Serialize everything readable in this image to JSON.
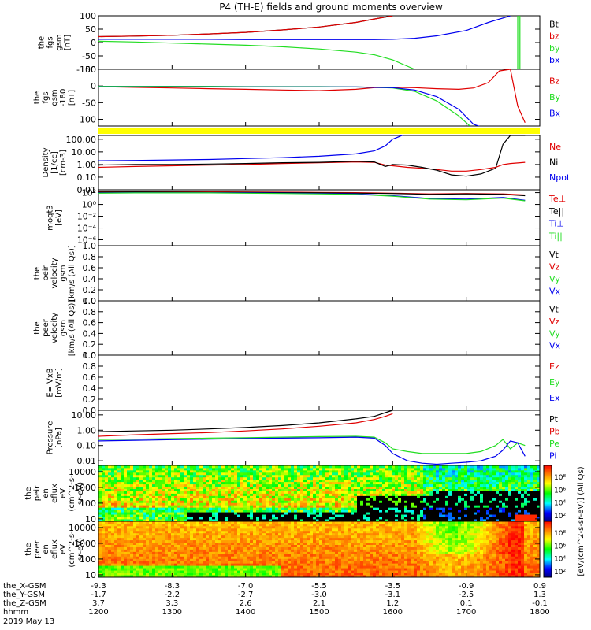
{
  "title": "P4 (TH-E) fields and ground moments overview",
  "colors": {
    "black": "#000000",
    "red": "#e00000",
    "green": "#22dd22",
    "blue": "#0000ee",
    "yellow": "#ffff00",
    "panel_bg": "#ffffff"
  },
  "chart_data": [
    {
      "type": "line",
      "ylabel_lines": [
        "the",
        "fgs",
        "gsm",
        "[nT]"
      ],
      "ylim": [
        -100,
        100
      ],
      "yticks": [
        "100",
        "50",
        "0",
        "-50",
        "-100"
      ],
      "legend": [
        "Bt",
        "bz",
        "by",
        "bx"
      ],
      "legend_colors": [
        "#000000",
        "#e00000",
        "#22dd22",
        "#0000ee"
      ],
      "x_hours": [
        12.0,
        12.5,
        13.0,
        13.5,
        14.0,
        14.5,
        15.0,
        15.5,
        15.75,
        16.0,
        16.3,
        16.6,
        17.0,
        17.3,
        17.6,
        17.8
      ],
      "series": [
        {
          "color": "#000000",
          "values": [
            22,
            24,
            27,
            32,
            38,
            47,
            58,
            75,
            88,
            100,
            null,
            null,
            null,
            null,
            null,
            null
          ]
        },
        {
          "color": "#e00000",
          "values": [
            22,
            24,
            27,
            32,
            38,
            47,
            58,
            75,
            88,
            100,
            null,
            null,
            null,
            null,
            null,
            null
          ]
        },
        {
          "color": "#22dd22",
          "values": [
            5,
            2,
            -2,
            -6,
            -10,
            -16,
            -24,
            -36,
            -46,
            -65,
            -100,
            null,
            null,
            null,
            null,
            null
          ]
        },
        {
          "color": "#0000ee",
          "values": [
            12,
            12,
            12,
            12,
            11,
            11,
            11,
            11,
            11,
            12,
            16,
            25,
            45,
            75,
            100,
            null
          ]
        }
      ],
      "spikes_hours": [
        17.7,
        17.73
      ]
    },
    {
      "type": "line",
      "ylabel_lines": [
        "the",
        "fgs",
        "gsm",
        "-180",
        "[nT]"
      ],
      "ylim": [
        -120,
        50
      ],
      "yticks": [
        "50",
        "0",
        "-50",
        "-100"
      ],
      "legend": [
        "Bz",
        "By",
        "Bx"
      ],
      "legend_colors": [
        "#e00000",
        "#22dd22",
        "#0000ee"
      ],
      "x_hours": [
        12.0,
        12.5,
        13.0,
        13.5,
        14.0,
        14.5,
        15.0,
        15.5,
        15.75,
        16.0,
        16.3,
        16.6,
        16.9,
        17.1,
        17.3,
        17.45,
        17.6,
        17.7,
        17.8
      ],
      "series": [
        {
          "color": "#e00000",
          "values": [
            -2,
            -4,
            -6,
            -8,
            -10,
            -12,
            -14,
            -10,
            -5,
            -4,
            -5,
            -8,
            -10,
            -6,
            10,
            45,
            50,
            -60,
            -110
          ]
        },
        {
          "color": "#22dd22",
          "values": [
            -1,
            -1,
            -1,
            -1,
            -2,
            -2,
            -2,
            -3,
            -4,
            -6,
            -16,
            -45,
            -90,
            -130,
            null,
            null,
            null,
            null,
            null
          ]
        },
        {
          "color": "#0000ee",
          "values": [
            -3,
            -3,
            -3,
            -3,
            -3,
            -3,
            -3,
            -3,
            -4,
            -5,
            -12,
            -32,
            -70,
            -115,
            -130,
            null,
            null,
            null,
            -100
          ]
        }
      ]
    },
    {
      "type": "line",
      "log": true,
      "ylabel_lines": [
        "Density",
        "[1/cc]",
        "[cm-3]"
      ],
      "ylim": [
        0.01,
        200
      ],
      "yticks": [
        "100.00",
        "10.00",
        "1.00",
        "0.10",
        "0.01"
      ],
      "legend": [
        "Ne",
        "Ni",
        "Npot"
      ],
      "legend_colors": [
        "#e00000",
        "#000000",
        "#0000ee"
      ],
      "x_hours": [
        12.0,
        12.5,
        13.0,
        13.5,
        14.0,
        14.5,
        15.0,
        15.5,
        15.75,
        15.9,
        16.0,
        16.2,
        16.4,
        16.6,
        16.8,
        17.0,
        17.2,
        17.4,
        17.5,
        17.6,
        17.8
      ],
      "series": [
        {
          "color": "#0000ee",
          "values": [
            2.0,
            2.1,
            2.3,
            2.5,
            3.0,
            3.5,
            4.5,
            7,
            12,
            30,
            100,
            300,
            null,
            null,
            null,
            null,
            null,
            null,
            null,
            null,
            null
          ]
        },
        {
          "color": "#e00000",
          "values": [
            0.6,
            0.7,
            0.8,
            0.9,
            1.0,
            1.2,
            1.4,
            1.6,
            1.5,
            0.9,
            0.8,
            0.6,
            0.5,
            0.4,
            0.3,
            0.3,
            0.4,
            0.6,
            1.0,
            1.2,
            1.5
          ]
        },
        {
          "color": "#000000",
          "values": [
            0.9,
            1.0,
            1.0,
            1.1,
            1.2,
            1.4,
            1.5,
            1.8,
            1.6,
            0.7,
            1.0,
            0.9,
            0.6,
            0.35,
            0.15,
            0.12,
            0.18,
            0.5,
            40,
            200,
            200
          ]
        }
      ]
    },
    {
      "type": "line",
      "log": true,
      "ylabel_lines": [
        "moqt3",
        "[eV]"
      ],
      "ylim": [
        1e-07,
        300
      ],
      "yticks": [
        "10²",
        "10⁰",
        "10⁻²",
        "10⁻⁴",
        "10⁻⁶"
      ],
      "legend": [
        "Te⊥",
        "Te||",
        "Ti⊥",
        "Ti||"
      ],
      "legend_colors": [
        "#e00000",
        "#000000",
        "#0000ee",
        "#22dd22"
      ],
      "x_hours": [
        12.0,
        12.5,
        13.0,
        13.5,
        14.0,
        14.5,
        15.0,
        15.5,
        16.0,
        16.5,
        17.0,
        17.5,
        17.8
      ],
      "series": [
        {
          "color": "#e00000",
          "values": [
            150,
            150,
            140,
            140,
            130,
            120,
            110,
            100,
            80,
            60,
            70,
            60,
            40
          ]
        },
        {
          "color": "#000000",
          "values": [
            120,
            130,
            120,
            110,
            110,
            100,
            90,
            80,
            70,
            50,
            60,
            50,
            30
          ]
        },
        {
          "color": "#0000ee",
          "values": [
            90,
            100,
            100,
            100,
            90,
            80,
            70,
            60,
            30,
            10,
            8,
            15,
            5
          ]
        },
        {
          "color": "#22dd22",
          "values": [
            80,
            90,
            90,
            90,
            80,
            70,
            60,
            50,
            25,
            8,
            6,
            12,
            4
          ]
        }
      ]
    },
    {
      "type": "line",
      "ylabel_lines": [
        "the",
        "peir",
        "velocity",
        "gsm",
        "[km/s (All Qs)]"
      ],
      "ylim": [
        0,
        1
      ],
      "yticks": [
        "1.0",
        "0.8",
        "0.6",
        "0.4",
        "0.2",
        "0.0"
      ],
      "legend": [
        "Vt",
        "Vz",
        "Vy",
        "Vx"
      ],
      "legend_colors": [
        "#000000",
        "#e00000",
        "#22dd22",
        "#0000ee"
      ],
      "series": []
    },
    {
      "type": "line",
      "ylabel_lines": [
        "the",
        "peer",
        "velocity",
        "gsm",
        "[km/s (All Qs)]"
      ],
      "ylim": [
        0,
        1
      ],
      "yticks": [
        "1.0",
        "0.8",
        "0.6",
        "0.4",
        "0.2",
        "0.0"
      ],
      "legend": [
        "Vt",
        "Vz",
        "Vy",
        "Vx"
      ],
      "legend_colors": [
        "#000000",
        "#e00000",
        "#22dd22",
        "#0000ee"
      ],
      "series": []
    },
    {
      "type": "line",
      "ylabel_lines": [
        "E=-VxB",
        "[mV/m]"
      ],
      "ylim": [
        0,
        1
      ],
      "yticks": [
        "1.0",
        "0.8",
        "0.6",
        "0.4",
        "0.2",
        "0.0"
      ],
      "legend": [
        "Ez",
        "Ey",
        "Ex"
      ],
      "legend_colors": [
        "#e00000",
        "#22dd22",
        "#0000ee"
      ],
      "series": []
    },
    {
      "type": "line",
      "log": true,
      "ylabel_lines": [
        "Pressure",
        "[nPa]"
      ],
      "ylim": [
        0.005,
        20
      ],
      "yticks": [
        "10.00",
        "1.00",
        "0.10",
        "0.01"
      ],
      "legend": [
        "Pt",
        "Pb",
        "Pe",
        "Pi"
      ],
      "legend_colors": [
        "#000000",
        "#e00000",
        "#22dd22",
        "#0000ee"
      ],
      "x_hours": [
        12.0,
        12.5,
        13.0,
        13.5,
        14.0,
        14.5,
        15.0,
        15.5,
        15.75,
        15.9,
        16.0,
        16.2,
        16.4,
        16.6,
        16.8,
        17.0,
        17.2,
        17.4,
        17.5,
        17.6,
        17.7,
        17.8
      ],
      "series": [
        {
          "color": "#000000",
          "values": [
            0.8,
            0.9,
            1.0,
            1.2,
            1.5,
            2.0,
            3.0,
            5.5,
            8,
            14,
            20,
            null,
            null,
            null,
            null,
            null,
            null,
            null,
            null,
            null,
            null,
            null
          ]
        },
        {
          "color": "#e00000",
          "values": [
            0.4,
            0.5,
            0.6,
            0.7,
            0.9,
            1.2,
            1.8,
            3.0,
            5.0,
            8,
            12,
            null,
            null,
            null,
            null,
            null,
            null,
            null,
            null,
            null,
            null,
            null
          ]
        },
        {
          "color": "#22dd22",
          "values": [
            0.25,
            0.26,
            0.28,
            0.3,
            0.32,
            0.35,
            0.38,
            0.4,
            0.35,
            0.15,
            0.06,
            0.04,
            0.03,
            0.03,
            0.03,
            0.03,
            0.04,
            0.1,
            0.25,
            0.06,
            0.15,
            0.1
          ]
        },
        {
          "color": "#0000ee",
          "values": [
            0.2,
            0.22,
            0.24,
            0.26,
            0.28,
            0.3,
            0.32,
            0.35,
            0.3,
            0.1,
            0.03,
            0.01,
            0.007,
            0.006,
            0.007,
            0.008,
            0.01,
            0.02,
            0.05,
            0.2,
            0.15,
            0.02
          ]
        }
      ]
    },
    {
      "type": "heatmap",
      "log": true,
      "ylabel_lines": [
        "the",
        "peir",
        "en",
        "eflux",
        "eV",
        "(cm^2-s-",
        "sr-eV)"
      ],
      "ylim": [
        7,
        25000
      ],
      "yticks": [
        "10000",
        "1000",
        "100",
        "10"
      ],
      "colorbar_ticks": [
        "10⁸",
        "10⁶",
        "10⁴",
        "10²"
      ]
    },
    {
      "type": "heatmap",
      "log": true,
      "ylabel_lines": [
        "the",
        "peer",
        "en",
        "eflux",
        "eV",
        "(cm^2-s-",
        "sr-eV)"
      ],
      "ylim": [
        7,
        25000
      ],
      "yticks": [
        "10000",
        "1000",
        "100",
        "10"
      ],
      "colorbar_ticks": [
        "10⁸",
        "10⁶",
        "10⁴",
        "10²"
      ]
    }
  ],
  "colorbar_label": "[eV/(cm^2-s-sr-eV)] (All Qs)",
  "xaxis": {
    "row_labels": [
      "the_X-GSM",
      "the_Y-GSM",
      "the_Z-GSM",
      "hhmm",
      "2019 May 13"
    ],
    "columns": [
      {
        "x": "-9.3",
        "y": "-1.7",
        "z": "3.7",
        "hhmm": "1200"
      },
      {
        "x": "-8.3",
        "y": "-2.2",
        "z": "3.3",
        "hhmm": "1300"
      },
      {
        "x": "-7.0",
        "y": "-2.7",
        "z": "2.6",
        "hhmm": "1400"
      },
      {
        "x": "-5.5",
        "y": "-3.0",
        "z": "2.1",
        "hhmm": "1500"
      },
      {
        "x": "-3.5",
        "y": "-3.1",
        "z": "1.2",
        "hhmm": "1600"
      },
      {
        "x": "-0.9",
        "y": "-2.5",
        "z": "0.1",
        "hhmm": "1700"
      },
      {
        "x": "0.9",
        "y": "1.3",
        "z": "-0.1",
        "hhmm": "1800"
      }
    ]
  }
}
